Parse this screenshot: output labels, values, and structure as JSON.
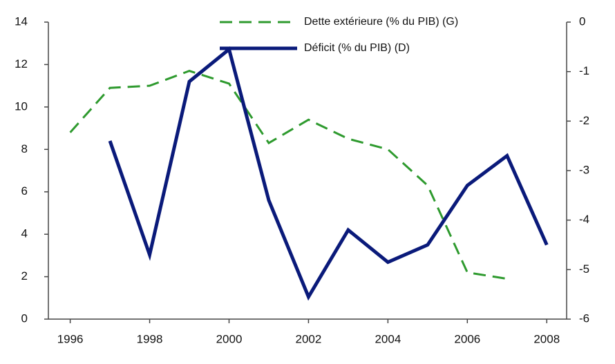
{
  "chart_data": {
    "type": "line",
    "x": [
      1996,
      1997,
      1998,
      1999,
      2000,
      2001,
      2002,
      2003,
      2004,
      2005,
      2006,
      2007,
      2008
    ],
    "series": [
      {
        "name": "Dette extérieure (% du PIB) (G)",
        "color": "#2e9a2e",
        "dashed": true,
        "values": [
          8.8,
          10.9,
          11.0,
          11.7,
          11.1,
          8.3,
          9.4,
          8.5,
          8.0,
          6.3,
          2.2,
          1.9,
          null
        ]
      },
      {
        "name": "Déficit (% du PIB) (D)",
        "color": "#0a1a7a",
        "axis": "y2",
        "values": [
          null,
          -2.4,
          -4.7,
          -1.2,
          -0.55,
          -3.6,
          -5.55,
          -4.2,
          -4.85,
          -4.5,
          -3.3,
          -2.7,
          -4.5
        ]
      }
    ],
    "xlim": [
      1995.45,
      2008.5
    ],
    "xticks": [
      1996,
      1998,
      2000,
      2002,
      2004,
      2006,
      2008
    ],
    "ylim": [
      0,
      14
    ],
    "yticks": [
      0,
      2,
      4,
      6,
      8,
      10,
      12,
      14
    ],
    "y2lim": [
      -6,
      0
    ],
    "y2ticks": [
      -6,
      -5,
      -4,
      -3,
      -2,
      -1,
      0
    ],
    "legend": "upper right"
  }
}
